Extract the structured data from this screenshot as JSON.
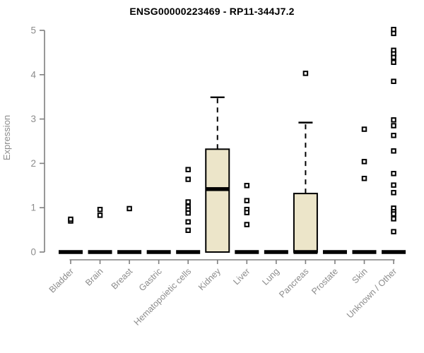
{
  "chart_data": {
    "type": "boxplot",
    "title": "ENSG00000223469 - RP11-344J7.2",
    "ylabel": "Expression",
    "xlabel": "",
    "ylim": [
      0,
      5
    ],
    "yticks": [
      0,
      1,
      2,
      3,
      4,
      5
    ],
    "grid": false,
    "legend": false,
    "categories": [
      "Bladder",
      "Brain",
      "Breast",
      "Gastric",
      "Hematopoietic cells",
      "Kidney",
      "Liver",
      "Lung",
      "Pancreas",
      "Prostate",
      "Skin",
      "Unknown / Other"
    ],
    "boxes": [
      {
        "label": "Bladder",
        "q1": 0,
        "median": 0,
        "q3": 0,
        "whisker_low": 0,
        "whisker_high": 0,
        "outliers": [
          0.7,
          0.74
        ]
      },
      {
        "label": "Brain",
        "q1": 0,
        "median": 0,
        "q3": 0,
        "whisker_low": 0,
        "whisker_high": 0,
        "outliers": [
          0.96,
          0.83
        ]
      },
      {
        "label": "Breast",
        "q1": 0,
        "median": 0,
        "q3": 0,
        "whisker_low": 0,
        "whisker_high": 0,
        "outliers": [
          0.98
        ]
      },
      {
        "label": "Gastric",
        "q1": 0,
        "median": 0,
        "q3": 0,
        "whisker_low": 0,
        "whisker_high": 0,
        "outliers": []
      },
      {
        "label": "Hematopoietic cells",
        "q1": 0,
        "median": 0,
        "q3": 0,
        "whisker_low": 0,
        "whisker_high": 0,
        "outliers": [
          1.86,
          1.64,
          1.13,
          1.02,
          0.95,
          0.88,
          0.68,
          0.49
        ]
      },
      {
        "label": "Kidney",
        "q1": 0,
        "median": 1.42,
        "q3": 2.32,
        "whisker_low": 0,
        "whisker_high": 3.49,
        "outliers": []
      },
      {
        "label": "Liver",
        "q1": 0,
        "median": 0,
        "q3": 0,
        "whisker_low": 0,
        "whisker_high": 0,
        "outliers": [
          1.5,
          1.16,
          0.96,
          0.89,
          0.62
        ]
      },
      {
        "label": "Lung",
        "q1": 0,
        "median": 0,
        "q3": 0,
        "whisker_low": 0,
        "whisker_high": 0,
        "outliers": []
      },
      {
        "label": "Pancreas",
        "q1": 0,
        "median": 0,
        "q3": 1.32,
        "whisker_low": 0,
        "whisker_high": 2.92,
        "outliers": [
          4.03
        ]
      },
      {
        "label": "Prostate",
        "q1": 0,
        "median": 0,
        "q3": 0,
        "whisker_low": 0,
        "whisker_high": 0,
        "outliers": []
      },
      {
        "label": "Skin",
        "q1": 0,
        "median": 0,
        "q3": 0,
        "whisker_low": 0,
        "whisker_high": 0,
        "outliers": [
          2.77,
          2.04,
          1.66
        ]
      },
      {
        "label": "Unknown / Other",
        "q1": 0,
        "median": 0,
        "q3": 0,
        "whisker_low": 0,
        "whisker_high": 0,
        "outliers": [
          5.02,
          4.93,
          4.55,
          4.47,
          4.39,
          4.28,
          3.85,
          2.98,
          2.85,
          2.63,
          2.28,
          1.77,
          1.51,
          1.34,
          0.99,
          0.91,
          0.86,
          0.75,
          0.46
        ]
      }
    ],
    "colors": {
      "box_fill": "#ece5c9",
      "box_border": "#000000",
      "median": "#000000",
      "whisker": "#000000",
      "outlier": "#000000",
      "axis": "#7f7f7f",
      "tick_label": "#8c8c8c",
      "title": "#000000"
    }
  }
}
